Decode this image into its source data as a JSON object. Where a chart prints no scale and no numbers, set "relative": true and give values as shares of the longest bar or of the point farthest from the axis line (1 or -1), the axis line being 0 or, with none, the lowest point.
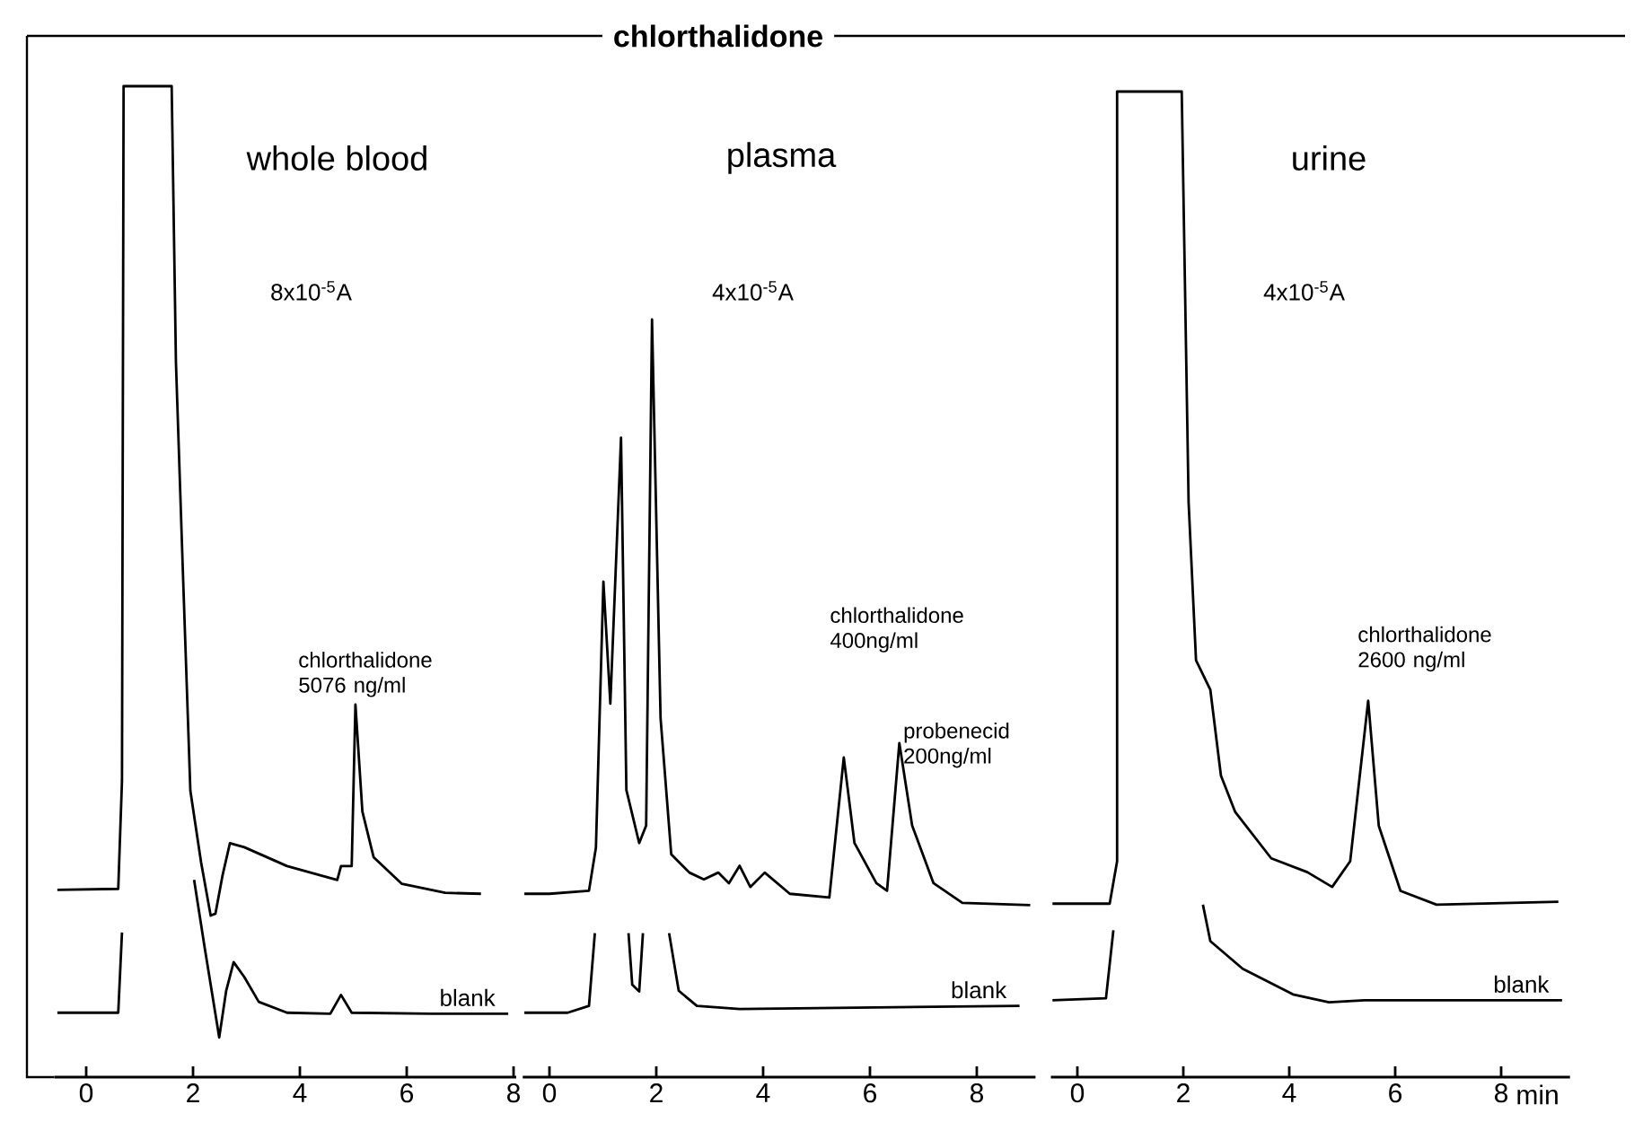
{
  "chart_data": [
    {
      "type": "line",
      "subtitle": "whole blood",
      "relative": true,
      "xlim": [
        -0.6,
        8.05
      ],
      "xticks": [
        0,
        2,
        4,
        6,
        8
      ],
      "series": [
        {
          "color": "#000000",
          "x": [
            -0.54,
            0.6,
            0.67,
            0.7,
            1.6,
            1.68,
            1.81,
            1.95,
            2.15,
            2.33,
            2.42,
            2.55,
            2.69,
            2.96,
            3.76,
            4.7,
            4.77,
            4.97,
            5.04,
            5.17,
            5.38,
            5.91,
            6.72,
            7.39
          ],
          "values": [
            0.189,
            0.19,
            0.299,
            1.0,
            1.0,
            0.721,
            0.51,
            0.289,
            0.217,
            0.163,
            0.165,
            0.203,
            0.236,
            0.232,
            0.213,
            0.199,
            0.213,
            0.213,
            0.376,
            0.268,
            0.222,
            0.195,
            0.186,
            0.185
          ]
        },
        {
          "name": "blank",
          "color": "#000000",
          "x": [
            -0.54,
            0.6,
            0.67,
            1.3,
            2.02,
            2.22,
            2.49,
            2.62,
            2.76,
            2.96,
            3.23,
            3.76,
            4.57,
            4.77,
            4.97,
            6.45,
            7.9
          ],
          "values": [
            0.065,
            0.065,
            0.146,
            null,
            0.199,
            0.13,
            0.04,
            0.087,
            0.116,
            0.101,
            0.076,
            0.065,
            0.064,
            0.083,
            0.065,
            0.064,
            0.064
          ]
        }
      ],
      "annotations": [
        "8x10$^{-5}$A",
        {
          "text": "chlorthalidone 5076 ng/ml",
          "x": 5.04,
          "y": 0.376
        }
      ]
    },
    {
      "type": "line",
      "title": "chlorthalidone",
      "subtitle": "plasma",
      "relative": true,
      "xlim": [
        -0.5,
        9.1
      ],
      "xticks": [
        0,
        2,
        4,
        6,
        8
      ],
      "series": [
        {
          "color": "#000000",
          "x": [
            -0.47,
            0,
            0.74,
            0.87,
            1.01,
            1.14,
            1.34,
            1.44,
            1.68,
            1.81,
            1.92,
            2.08,
            2.28,
            2.62,
            2.89,
            3.16,
            3.36,
            3.56,
            3.76,
            4.03,
            4.5,
            5.24,
            5.51,
            5.71,
            6.12,
            6.32,
            6.55,
            6.79,
            7.19,
            7.73,
            9.0
          ],
          "values": [
            0.242,
            0.242,
            0.246,
            0.303,
            0.654,
            0.493,
            0.844,
            0.379,
            0.309,
            0.332,
            1.0,
            0.474,
            0.294,
            0.27,
            0.261,
            0.27,
            0.256,
            0.279,
            0.251,
            0.27,
            0.242,
            0.237,
            0.422,
            0.309,
            0.256,
            0.246,
            0.441,
            0.332,
            0.256,
            0.23,
            0.227
          ]
        },
        {
          "name": "blank",
          "color": "#000000",
          "x": [
            -0.47,
            0.34,
            0.74,
            0.85,
            1.2,
            1.48,
            1.55,
            1.68,
            1.75,
            2.0,
            2.24,
            2.42,
            2.76,
            3.56,
            8.8
          ],
          "values": [
            0.085,
            0.085,
            0.094,
            0.19,
            null,
            0.19,
            0.122,
            0.113,
            0.19,
            null,
            0.19,
            0.114,
            0.094,
            0.09,
            0.094
          ]
        }
      ],
      "annotations": [
        "4x10$^{-5}$A",
        "chlorthalidone 400ng/ml",
        {
          "text": "probenecid 200ng/ml",
          "x": 6.55,
          "y": 0.441
        }
      ]
    },
    {
      "type": "line",
      "subtitle": "urine",
      "relative": true,
      "xlim": [
        -0.5,
        9.3
      ],
      "xticks": [
        0,
        2,
        4,
        6,
        8
      ],
      "xlabel": "min",
      "series": [
        {
          "color": "#000000",
          "x": [
            -0.47,
            0.61,
            0.75,
            0.75,
            1.97,
            2.1,
            2.24,
            2.51,
            2.71,
            2.98,
            3.66,
            4.34,
            4.81,
            5.15,
            5.49,
            5.69,
            6.1,
            6.78,
            9.08
          ],
          "values": [
            0.176,
            0.176,
            0.219,
            1.0,
            1.0,
            0.583,
            0.423,
            0.393,
            0.306,
            0.269,
            0.222,
            0.208,
            0.193,
            0.219,
            0.382,
            0.255,
            0.189,
            0.175,
            0.178
          ]
        },
        {
          "name": "blank",
          "color": "#000000",
          "x": [
            -0.47,
            0.54,
            0.68,
            1.5,
            2.37,
            2.51,
            3.12,
            4.07,
            4.75,
            5.42,
            9.15
          ],
          "values": [
            0.078,
            0.08,
            0.149,
            null,
            0.175,
            0.138,
            0.11,
            0.084,
            0.076,
            0.078,
            0.078
          ]
        }
      ],
      "annotations": [
        "4x10$^{-5}$A",
        {
          "text": "chlorthalidone 2600 ng/ml",
          "x": 5.49,
          "y": 0.382
        }
      ]
    }
  ]
}
